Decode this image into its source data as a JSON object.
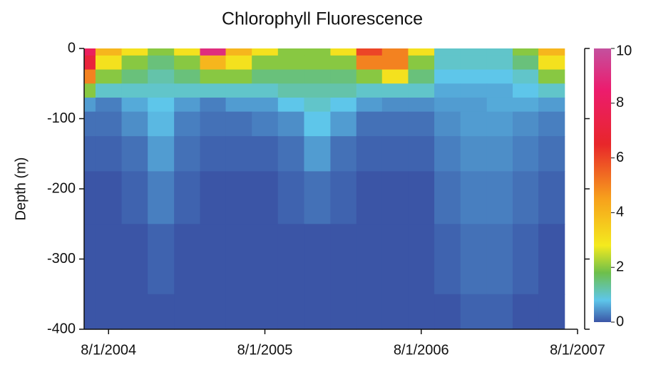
{
  "chart_data": {
    "type": "heatmap",
    "title": "Chlorophyll Fluorescence",
    "ylabel": "Depth (m)",
    "x": [
      "6/1/2004",
      "8/1/2004",
      "10/1/2004",
      "12/1/2004",
      "2/1/2005",
      "4/1/2005",
      "6/1/2005",
      "8/1/2005",
      "10/1/2005",
      "12/1/2005",
      "2/1/2006",
      "4/1/2006",
      "6/1/2006",
      "8/1/2006",
      "10/1/2006",
      "12/1/2006",
      "2/1/2007",
      "4/1/2007",
      "6/1/2007"
    ],
    "y": [
      0,
      -20,
      -40,
      -60,
      -80,
      -100,
      -150,
      -200,
      -300,
      -400
    ],
    "z": [
      [
        8,
        4,
        3,
        2,
        3,
        9,
        4,
        3,
        2,
        2,
        3,
        6,
        5,
        3,
        1,
        1,
        1,
        2,
        4
      ],
      [
        7,
        3,
        2,
        1.5,
        2,
        4,
        3,
        2,
        2,
        2,
        2,
        5,
        5,
        2,
        1,
        1,
        1,
        1.5,
        3
      ],
      [
        5,
        2,
        1.5,
        1.2,
        1.5,
        2,
        2,
        1.5,
        1.5,
        1.5,
        1.5,
        2,
        3,
        1.5,
        0.8,
        0.8,
        0.8,
        1,
        2
      ],
      [
        2,
        1,
        1,
        1,
        1,
        1,
        1,
        1,
        1.2,
        1.2,
        1.2,
        1,
        1,
        1,
        0.6,
        0.6,
        0.6,
        0.8,
        1
      ],
      [
        0.5,
        0.3,
        0.6,
        0.8,
        0.5,
        0.3,
        0.5,
        0.5,
        0.8,
        1,
        0.8,
        0.5,
        0.4,
        0.4,
        0.5,
        0.5,
        0.6,
        0.6,
        0.5
      ],
      [
        0.2,
        0.2,
        0.4,
        0.7,
        0.3,
        0.2,
        0.2,
        0.3,
        0.4,
        0.8,
        0.5,
        0.2,
        0.2,
        0.2,
        0.4,
        0.5,
        0.5,
        0.4,
        0.3
      ],
      [
        0.1,
        0.1,
        0.2,
        0.5,
        0.2,
        0.1,
        0.1,
        0.1,
        0.2,
        0.5,
        0.2,
        0.1,
        0.1,
        0.1,
        0.3,
        0.4,
        0.4,
        0.3,
        0.2
      ],
      [
        0,
        0,
        0.1,
        0.3,
        0.1,
        0,
        0,
        0,
        0.1,
        0.2,
        0.1,
        0,
        0,
        0,
        0.2,
        0.3,
        0.3,
        0.2,
        0.1
      ],
      [
        0,
        0,
        0,
        0.1,
        0,
        0,
        0,
        0,
        0,
        0,
        0,
        0,
        0,
        0,
        0.1,
        0.2,
        0.2,
        0.1,
        0
      ],
      [
        0,
        0,
        0,
        0,
        0,
        0,
        0,
        0,
        0,
        0,
        0,
        0,
        0,
        0,
        0,
        0.1,
        0.1,
        0,
        0
      ]
    ],
    "xlim": [
      "6/5/2004",
      "8/1/2007"
    ],
    "xticks": [
      "8/1/2004",
      "8/1/2005",
      "8/1/2006",
      "8/1/2007"
    ],
    "ylim": [
      -400,
      0
    ],
    "yticks": [
      0,
      -100,
      -200,
      -300,
      -400
    ],
    "zlim": [
      0,
      10
    ],
    "zticks": [
      0,
      2,
      4,
      6,
      8,
      10
    ],
    "colorscale": [
      [
        0,
        "#3b55a6"
      ],
      [
        0.8,
        "#5ec6ea"
      ],
      [
        1.8,
        "#6dbf4b"
      ],
      [
        2.8,
        "#f4ea1e"
      ],
      [
        4.5,
        "#f7a11c"
      ],
      [
        6.5,
        "#e8262a"
      ],
      [
        8.5,
        "#ec1c6e"
      ],
      [
        10,
        "#c4509e"
      ]
    ]
  }
}
